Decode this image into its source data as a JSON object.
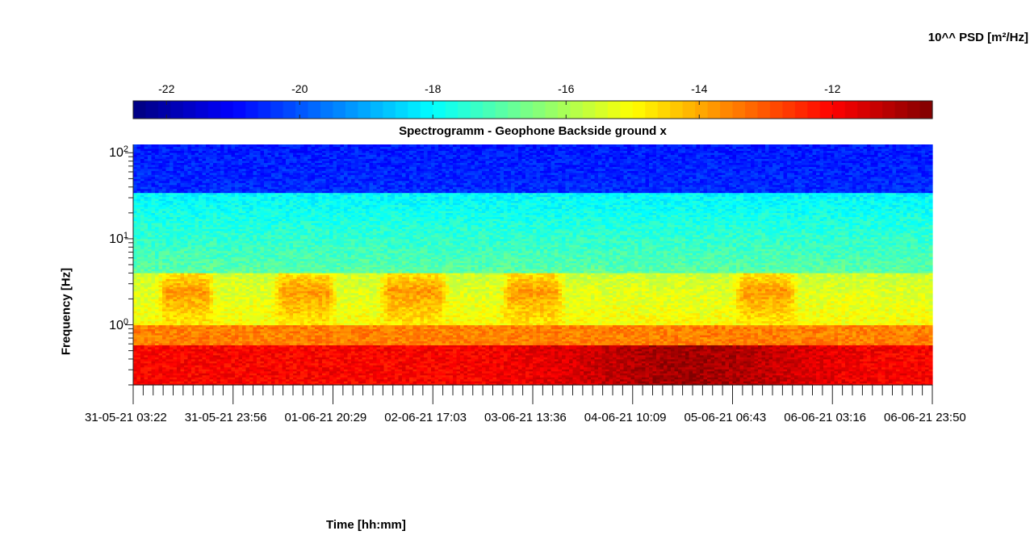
{
  "chart_data": {
    "type": "heatmap",
    "title": "Spectrogramm - Geophone Backside ground x",
    "xlabel": "Time [hh:mm]",
    "ylabel": "Frequency [Hz]",
    "colorbar": {
      "label": "10^^ PSD [m²/Hz]",
      "ticks": [
        -22,
        -20,
        -18,
        -16,
        -14,
        -12
      ],
      "range": [
        -22.5,
        -10.5
      ],
      "colormap": "jet",
      "placement": "top"
    },
    "y_scale": "log",
    "y_ticks": [
      {
        "base": "10",
        "exp": "2",
        "value": 100
      },
      {
        "base": "10",
        "exp": "1",
        "value": 10
      },
      {
        "base": "10",
        "exp": "0",
        "value": 1
      }
    ],
    "y_range": [
      0.2,
      125
    ],
    "x_tick_labels": [
      "31-05-21  03:22",
      "31-05-21  23:56",
      "01-06-21  20:29",
      "02-06-21  17:03",
      "03-06-21  13:36",
      "04-06-21  10:09",
      "05-06-21  06:43",
      "06-06-21  03:16",
      "06-06-21  23:50"
    ],
    "x_range_hours": [
      0,
      144
    ],
    "minor_ticks_between_major": 9,
    "description_bands": [
      {
        "freq_range_hz": [
          0.2,
          0.6
        ],
        "log10_psd": -12.0
      },
      {
        "freq_range_hz": [
          0.6,
          1.0
        ],
        "log10_psd": -13.5
      },
      {
        "freq_range_hz": [
          1.0,
          4.0
        ],
        "log10_psd": -15.0
      },
      {
        "freq_range_hz": [
          4.0,
          35.0
        ],
        "log10_psd": -17.5
      },
      {
        "freq_range_hz": [
          35.0,
          125.0
        ],
        "log10_psd": -20.5
      }
    ],
    "activity_periods_hours": [
      [
        6,
        13
      ],
      [
        27,
        35
      ],
      [
        46,
        55
      ],
      [
        68,
        76
      ],
      [
        110,
        118
      ]
    ],
    "grid": false
  }
}
